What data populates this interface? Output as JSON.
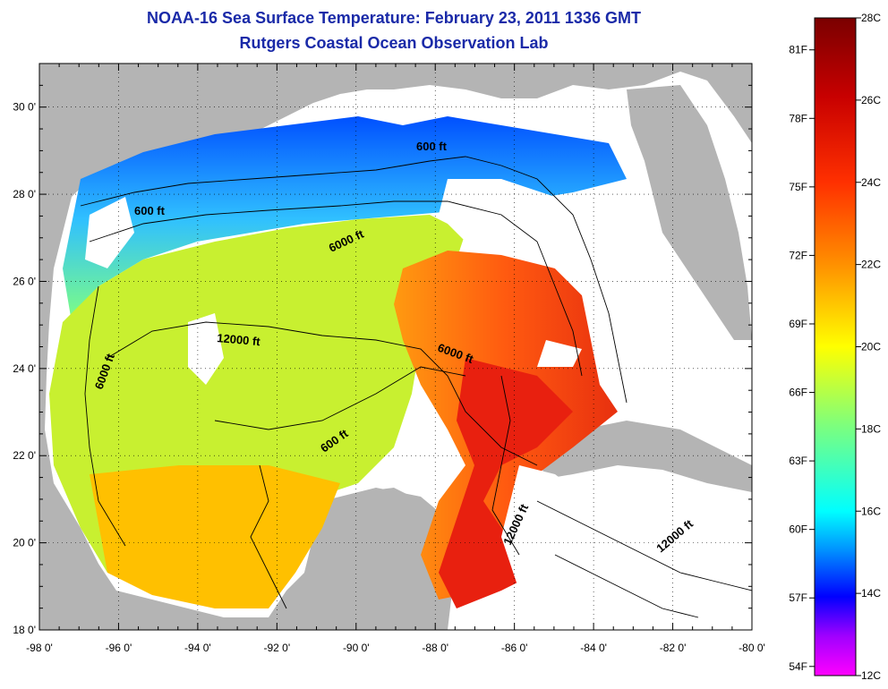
{
  "header": {
    "title": "NOAA-16 Sea Surface Temperature:  February 23, 2011 1336 GMT",
    "subtitle": "Rutgers Coastal Ocean Observation Lab"
  },
  "map": {
    "lon_range": [
      -98,
      -80
    ],
    "lat_range": [
      18,
      31
    ],
    "lon_ticks": [
      "-98 0'",
      "-96 0'",
      "-94 0'",
      "-92 0'",
      "-90 0'",
      "-88 0'",
      "-86 0'",
      "-84 0'",
      "-82 0'",
      "-80 0'"
    ],
    "lat_ticks": [
      "18 0'",
      "20 0'",
      "22 0'",
      "24 0'",
      "26 0'",
      "28 0'",
      "30 0'"
    ],
    "contour_labels": [
      "600 ft",
      "600 ft",
      "6000 ft",
      "12000 ft",
      "6000 ft",
      "6000 ft",
      "600 ft",
      "12000 ft",
      "12000 ft"
    ],
    "colors": {
      "land": "#b4b4b4",
      "cloud": "#ffffff",
      "warm": "#e8350f",
      "cool": "#1a8cff"
    }
  },
  "colorbar": {
    "celsius": [
      "28C",
      "26C",
      "24C",
      "22C",
      "20C",
      "18C",
      "16C",
      "14C",
      "12C"
    ],
    "fahrenheit": [
      "81F",
      "78F",
      "75F",
      "72F",
      "69F",
      "66F",
      "63F",
      "60F",
      "57F",
      "54F"
    ],
    "c_range": [
      12,
      28
    ]
  }
}
